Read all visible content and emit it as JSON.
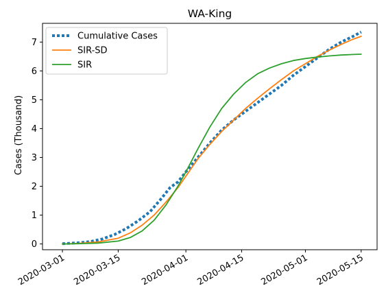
{
  "chart_data": {
    "type": "line",
    "title": "WA-King",
    "xlabel": "",
    "ylabel": "Cases (Thousand)",
    "xlim": [
      "2020-02-25",
      "2020-05-19"
    ],
    "ylim": [
      -0.2,
      7.65
    ],
    "x_ticks": [
      "2020-03-01",
      "2020-03-15",
      "2020-04-01",
      "2020-04-15",
      "2020-05-01",
      "2020-05-15"
    ],
    "y_ticks": [
      0,
      1,
      2,
      3,
      4,
      5,
      6,
      7
    ],
    "legend_position": "top-left",
    "grid": false,
    "series": [
      {
        "name": "Cumulative Cases",
        "style": "dotted",
        "color": "#1f77b4",
        "x": [
          "2020-03-01",
          "2020-03-05",
          "2020-03-08",
          "2020-03-11",
          "2020-03-14",
          "2020-03-17",
          "2020-03-20",
          "2020-03-23",
          "2020-03-26",
          "2020-03-28",
          "2020-03-30",
          "2020-04-01",
          "2020-04-04",
          "2020-04-07",
          "2020-04-10",
          "2020-04-13",
          "2020-04-16",
          "2020-04-19",
          "2020-04-22",
          "2020-04-25",
          "2020-04-28",
          "2020-05-01",
          "2020-05-04",
          "2020-05-07",
          "2020-05-10",
          "2020-05-13",
          "2020-05-15"
        ],
        "y": [
          0.01,
          0.04,
          0.08,
          0.17,
          0.32,
          0.53,
          0.8,
          1.12,
          1.6,
          1.95,
          2.15,
          2.5,
          3.0,
          3.5,
          3.95,
          4.3,
          4.6,
          4.9,
          5.2,
          5.5,
          5.85,
          6.15,
          6.45,
          6.75,
          7.0,
          7.2,
          7.35
        ]
      },
      {
        "name": "SIR-SD",
        "style": "solid",
        "color": "#ff7f0e",
        "x": [
          "2020-03-01",
          "2020-03-05",
          "2020-03-10",
          "2020-03-15",
          "2020-03-18",
          "2020-03-21",
          "2020-03-24",
          "2020-03-27",
          "2020-03-30",
          "2020-04-01",
          "2020-04-04",
          "2020-04-07",
          "2020-04-10",
          "2020-04-13",
          "2020-04-16",
          "2020-04-19",
          "2020-04-22",
          "2020-04-25",
          "2020-04-28",
          "2020-05-01",
          "2020-05-04",
          "2020-05-07",
          "2020-05-10",
          "2020-05-13",
          "2020-05-15"
        ],
        "y": [
          0.0,
          0.02,
          0.07,
          0.2,
          0.38,
          0.65,
          1.0,
          1.45,
          1.95,
          2.35,
          2.95,
          3.45,
          3.9,
          4.3,
          4.7,
          5.05,
          5.38,
          5.7,
          6.0,
          6.25,
          6.5,
          6.72,
          6.92,
          7.1,
          7.2
        ]
      },
      {
        "name": "SIR",
        "style": "solid",
        "color": "#2ca02c",
        "x": [
          "2020-03-01",
          "2020-03-05",
          "2020-03-10",
          "2020-03-15",
          "2020-03-18",
          "2020-03-21",
          "2020-03-24",
          "2020-03-27",
          "2020-03-30",
          "2020-04-01",
          "2020-04-04",
          "2020-04-07",
          "2020-04-10",
          "2020-04-13",
          "2020-04-16",
          "2020-04-19",
          "2020-04-22",
          "2020-04-25",
          "2020-04-28",
          "2020-05-01",
          "2020-05-04",
          "2020-05-07",
          "2020-05-10",
          "2020-05-13",
          "2020-05-15"
        ],
        "y": [
          0.0,
          0.01,
          0.03,
          0.1,
          0.22,
          0.45,
          0.82,
          1.35,
          2.0,
          2.5,
          3.3,
          4.05,
          4.7,
          5.2,
          5.6,
          5.9,
          6.1,
          6.25,
          6.36,
          6.43,
          6.48,
          6.52,
          6.55,
          6.57,
          6.58
        ]
      }
    ]
  }
}
